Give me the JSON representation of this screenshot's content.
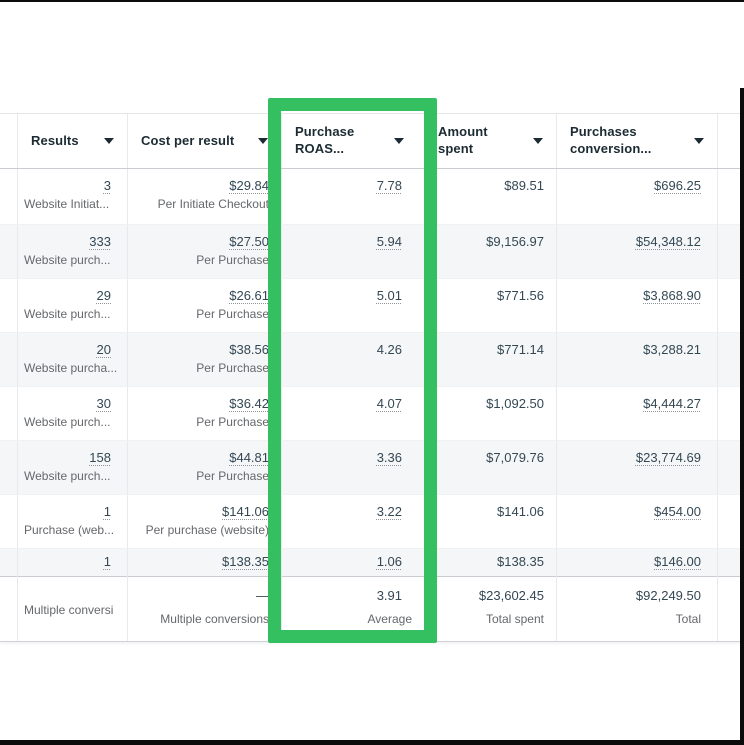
{
  "annotation": {
    "shape": "rectangle-highlight",
    "highlight_color": "#34bf61",
    "highlighted_column": "Purchase ROAS..."
  },
  "frame": {
    "edge_color": "#0b0b0b"
  },
  "table": {
    "headers": {
      "results": "Results",
      "cost_per_result": "Cost per result",
      "purchase_roas": "Purchase ROAS...",
      "amount_spent": "Amount spent",
      "purchases_conversion": "Purchases conversion...",
      "sort_icon": "caret-down"
    },
    "rows": [
      {
        "results": "3",
        "results_label": "Website Initiat...",
        "cost": "$29.84",
        "cost_label": "Per Initiate Checkout",
        "roas": "7.78",
        "spent": "$89.51",
        "purchases": "$696.25"
      },
      {
        "results": "333",
        "results_label": "Website purch...",
        "cost": "$27.50",
        "cost_label": "Per Purchase",
        "roas": "5.94",
        "spent": "$9,156.97",
        "purchases": "$54,348.12"
      },
      {
        "results": "29",
        "results_label": "Website purch...",
        "cost": "$26.61",
        "cost_label": "Per Purchase",
        "roas": "5.01",
        "spent": "$771.56",
        "purchases": "$3,868.90"
      },
      {
        "results": "20",
        "results_label": "Website purcha...",
        "cost": "$38.56",
        "cost_label": "Per Purchase",
        "roas": "4.26",
        "spent": "$771.14",
        "purchases": "$3,288.21"
      },
      {
        "results": "30",
        "results_label": "Website purch...",
        "cost": "$36.42",
        "cost_label": "Per Purchase",
        "roas": "4.07",
        "spent": "$1,092.50",
        "purchases": "$4,444.27"
      },
      {
        "results": "158",
        "results_label": "Website purch...",
        "cost": "$44.81",
        "cost_label": "Per Purchase",
        "roas": "3.36",
        "spent": "$7,079.76",
        "purchases": "$23,774.69"
      },
      {
        "results": "1",
        "results_label": "Purchase (web...",
        "cost": "$141.06",
        "cost_label": "Per purchase (website)",
        "roas": "3.22",
        "spent": "$141.06",
        "purchases": "$454.00"
      },
      {
        "results": "1",
        "cost": "$138.35",
        "roas": "1.06",
        "spent": "$138.35",
        "purchases": "$146.00"
      }
    ],
    "summary": {
      "results_label": "Multiple conversi",
      "cost": "—",
      "cost_label": "Multiple conversions",
      "roas": "3.91",
      "roas_label": "Average",
      "spent": "$23,602.45",
      "spent_label": "Total spent",
      "purchases": "$92,249.50",
      "purchases_label": "Total"
    }
  }
}
